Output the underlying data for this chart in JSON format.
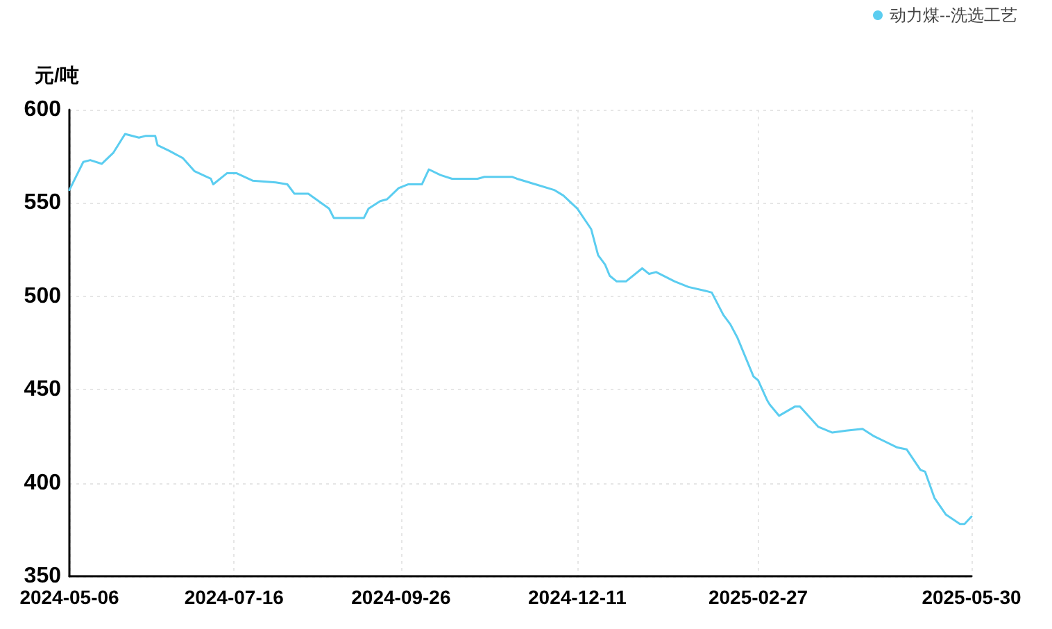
{
  "chart_data": {
    "type": "line",
    "ylabel": "元/吨",
    "legend": "top right",
    "grid": true,
    "marker": "none",
    "line_style": "solid",
    "xlim": [
      "2024-05-06",
      "2025-05-30"
    ],
    "xticks": [
      "2024-05-06",
      "2024-07-16",
      "2024-09-26",
      "2024-12-11",
      "2025-02-27",
      "2025-05-30"
    ],
    "ylim": [
      350,
      600
    ],
    "yticks": [
      350,
      400,
      450,
      500,
      550,
      600
    ],
    "series": [
      {
        "name": "动力煤--洗选工艺",
        "color": "#5bcdf0",
        "x": [
          "2024-05-06",
          "2024-05-12",
          "2024-05-15",
          "2024-05-20",
          "2024-05-25",
          "2024-05-30",
          "2024-06-05",
          "2024-06-08",
          "2024-06-12",
          "2024-06-13",
          "2024-06-18",
          "2024-06-24",
          "2024-06-29",
          "2024-07-06",
          "2024-07-07",
          "2024-07-13",
          "2024-07-17",
          "2024-07-24",
          "2024-08-03",
          "2024-08-08",
          "2024-08-11",
          "2024-08-17",
          "2024-08-26",
          "2024-08-28",
          "2024-09-10",
          "2024-09-12",
          "2024-09-17",
          "2024-09-20",
          "2024-09-25",
          "2024-09-29",
          "2024-10-05",
          "2024-10-08",
          "2024-10-13",
          "2024-10-18",
          "2024-10-22",
          "2024-10-29",
          "2024-11-01",
          "2024-11-13",
          "2024-11-15",
          "2024-11-23",
          "2024-12-01",
          "2024-12-05",
          "2024-12-11",
          "2024-12-17",
          "2024-12-20",
          "2024-12-23",
          "2024-12-25",
          "2024-12-28",
          "2025-01-01",
          "2025-01-08",
          "2025-01-11",
          "2025-01-14",
          "2025-01-22",
          "2025-01-28",
          "2025-02-04",
          "2025-02-07",
          "2025-02-12",
          "2025-02-15",
          "2025-02-18",
          "2025-02-25",
          "2025-02-27",
          "2025-03-03",
          "2025-03-04",
          "2025-03-08",
          "2025-03-15",
          "2025-03-17",
          "2025-03-25",
          "2025-03-31",
          "2025-04-06",
          "2025-04-13",
          "2025-04-18",
          "2025-04-28",
          "2025-05-02",
          "2025-05-08",
          "2025-05-10",
          "2025-05-14",
          "2025-05-19",
          "2025-05-25",
          "2025-05-27",
          "2025-05-30"
        ],
        "values": [
          557,
          572,
          573,
          571,
          577,
          587,
          585,
          586,
          586,
          581,
          578,
          574,
          567,
          563,
          560,
          566,
          566,
          562,
          561,
          560,
          555,
          555,
          547,
          542,
          542,
          547,
          551,
          552,
          558,
          560,
          560,
          568,
          565,
          563,
          563,
          563,
          564,
          564,
          563,
          560,
          557,
          554,
          547,
          536,
          522,
          517,
          511,
          508,
          508,
          515,
          512,
          513,
          508,
          505,
          503,
          502,
          490,
          485,
          478,
          457,
          455,
          444,
          442,
          436,
          441,
          441,
          430,
          427,
          428,
          429,
          425,
          419,
          418,
          407,
          406,
          392,
          383,
          378,
          378,
          382
        ]
      }
    ]
  }
}
